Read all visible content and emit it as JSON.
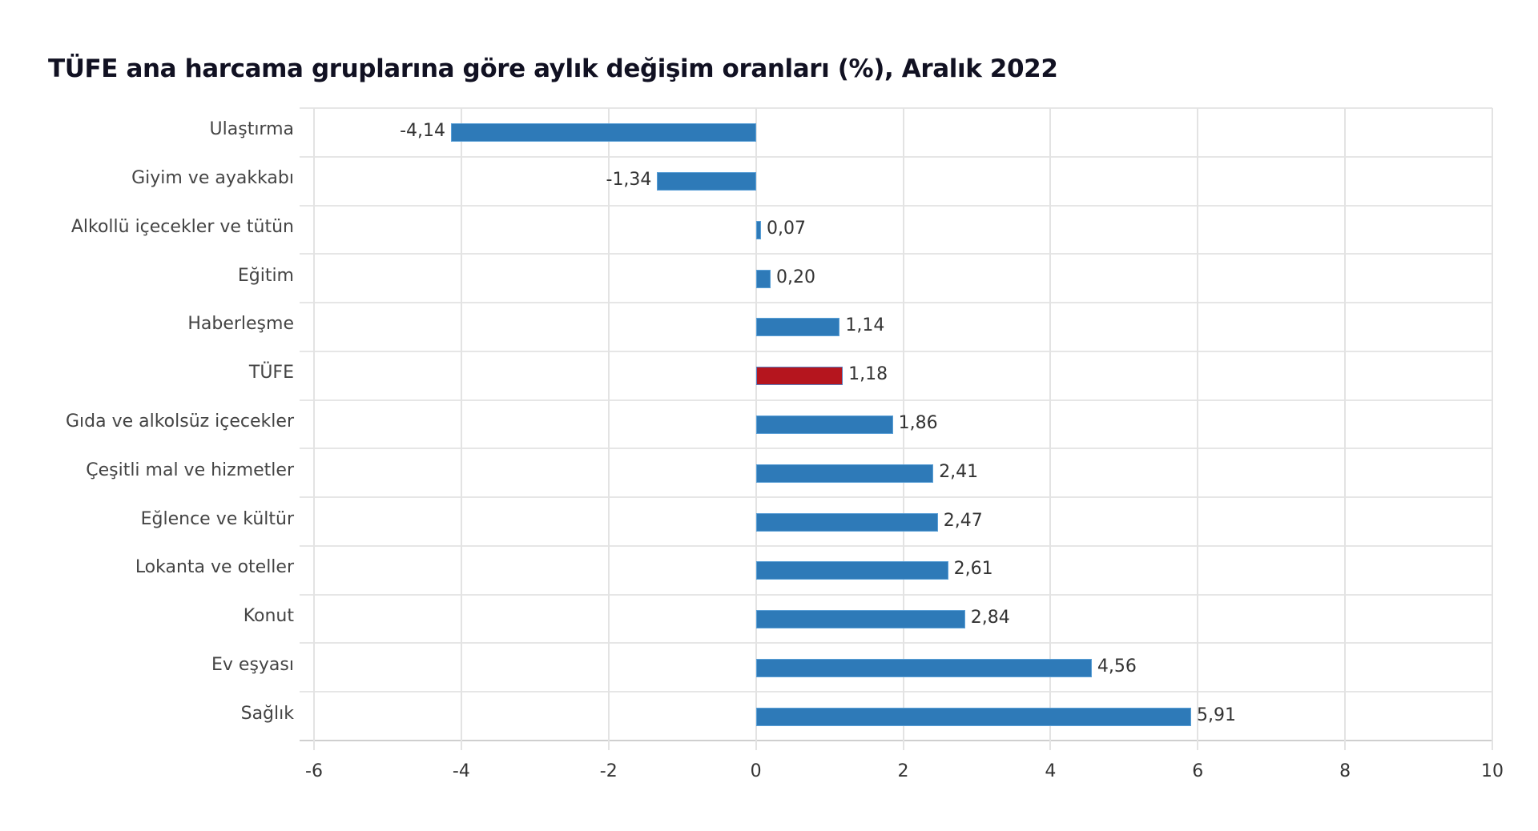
{
  "title": "TÜFE ana harcama gruplarına göre aylık değişim oranları (%), Aralık 2022",
  "colors": {
    "bar": "#2e7ab8",
    "highlight": "#b5151e",
    "highlight_border": "#5a7fc0"
  },
  "chart_data": {
    "type": "bar",
    "orientation": "horizontal",
    "title": "TÜFE ana harcama gruplarına göre aylık değişim oranları (%), Aralık 2022",
    "xlabel": "",
    "ylabel": "",
    "xlim": [
      -6,
      10
    ],
    "xticks": [
      -6,
      -4,
      -2,
      0,
      2,
      4,
      6,
      8,
      10
    ],
    "grid": true,
    "legend": null,
    "categories": [
      "Ulaştırma",
      "Giyim ve ayakkabı",
      "Alkollü içecekler ve tütün",
      "Eğitim",
      "Haberleşme",
      "TÜFE",
      "Gıda ve alkolsüz içecekler",
      "Çeşitli mal ve hizmetler",
      "Eğlence ve kültür",
      "Lokanta ve oteller",
      "Konut",
      "Ev eşyası",
      "Sağlık"
    ],
    "values": [
      -4.14,
      -1.34,
      0.07,
      0.2,
      1.14,
      1.18,
      1.86,
      2.41,
      2.47,
      2.61,
      2.84,
      4.56,
      5.91
    ],
    "value_labels": [
      "-4,14",
      "-1,34",
      "0,07",
      "0,20",
      "1,14",
      "1,18",
      "1,86",
      "2,41",
      "2,47",
      "2,61",
      "2,84",
      "4,56",
      "5,91"
    ],
    "highlight_category": "TÜFE"
  }
}
